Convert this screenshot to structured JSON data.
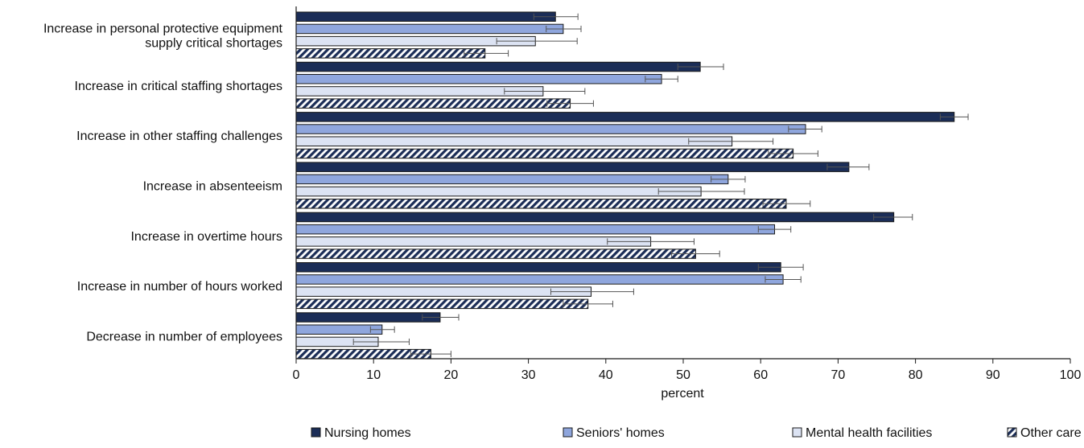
{
  "chart_data": {
    "type": "bar",
    "orientation": "horizontal",
    "title": "",
    "xlabel": "percent",
    "ylabel": "",
    "xlim": [
      0,
      100
    ],
    "xticks": [
      0,
      10,
      20,
      30,
      40,
      50,
      60,
      70,
      80,
      90,
      100
    ],
    "grid": false,
    "legend_position": "bottom",
    "categories": [
      [
        "Increase in personal protective equipment",
        "supply critical shortages"
      ],
      [
        "Increase in critical staffing shortages"
      ],
      [
        "Increase in other staffing challenges"
      ],
      [
        "Increase in absenteeism"
      ],
      [
        "Increase in overtime hours"
      ],
      [
        "Increase in number of hours worked"
      ],
      [
        "Decrease in number of employees"
      ]
    ],
    "series": [
      {
        "name": "Nursing homes",
        "fill": "#1b2d57",
        "pattern": "solid",
        "values": [
          33.5,
          52.2,
          85.0,
          71.4,
          77.2,
          62.6,
          18.6
        ],
        "error_low": [
          30.7,
          49.3,
          83.2,
          68.6,
          74.6,
          59.7,
          16.3
        ],
        "error_high": [
          36.4,
          55.2,
          86.8,
          74.0,
          79.6,
          65.5,
          21.0
        ]
      },
      {
        "name": "Seniors' homes",
        "fill": "#8fa6dd",
        "pattern": "solid",
        "values": [
          34.5,
          47.2,
          65.8,
          55.8,
          61.8,
          62.9,
          11.1
        ],
        "error_low": [
          32.3,
          45.1,
          63.6,
          53.6,
          59.7,
          60.6,
          9.6
        ],
        "error_high": [
          36.8,
          49.3,
          67.9,
          58.0,
          63.9,
          65.2,
          12.7
        ]
      },
      {
        "name": "Mental health facilities",
        "fill": "#dce3f3",
        "pattern": "solid",
        "values": [
          30.9,
          31.9,
          56.3,
          52.3,
          45.8,
          38.1,
          10.6
        ],
        "error_low": [
          25.9,
          26.9,
          50.7,
          46.8,
          40.2,
          32.9,
          7.4
        ],
        "error_high": [
          36.3,
          37.3,
          61.6,
          57.9,
          51.4,
          43.6,
          14.6
        ]
      },
      {
        "name": "Other care facilities",
        "fill": "#ffffff",
        "pattern": "hatched",
        "values": [
          24.4,
          35.4,
          64.2,
          63.3,
          51.6,
          37.7,
          17.4
        ],
        "error_low": [
          21.7,
          32.4,
          61.0,
          60.3,
          48.5,
          34.5,
          14.8
        ],
        "error_high": [
          27.4,
          38.4,
          67.4,
          66.4,
          54.7,
          40.9,
          20.0
        ]
      }
    ]
  },
  "colors": {
    "axis": "#1a1a1a",
    "bar_outline": "#1a1a1a",
    "hatch": "#1b2d57",
    "error_bar": "#555555"
  }
}
